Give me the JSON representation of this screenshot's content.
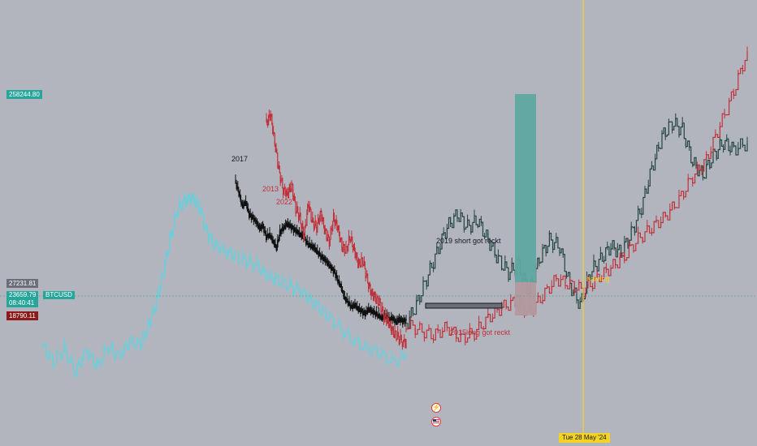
{
  "symbol": "BTCUSD",
  "price_scale": {
    "top_label": "258244.80",
    "level_label": "27231.81",
    "current_price": "23659.79",
    "countdown": "08:40:41",
    "low_label": "18790.11"
  },
  "date_axis": {
    "cursor_label": "Tue 28 May '24"
  },
  "colors": {
    "background": "#b2b5be",
    "cycle_2013": "#c0313a",
    "cycle_2017": "#111111",
    "cycle_2019": "#23443f",
    "cycle_2022": "#5fd3df",
    "halving_line": "#f5d323",
    "long_box": "#5fa8a0",
    "short_box": "#b19a9f"
  },
  "icons": {
    "event_flash": "lightning-icon",
    "event_country": "us-flag-icon"
  },
  "chart_data": {
    "type": "line",
    "y_scale": "log",
    "ylim": [
      18790.11,
      258244.8
    ],
    "annotations": [
      {
        "text": "2017"
      },
      {
        "text": "2013"
      },
      {
        "text": "2022"
      },
      {
        "text": "2019 short got reckt"
      },
      {
        "text": "2015long got reckt"
      },
      {
        "text": "halving"
      }
    ],
    "series": [
      {
        "name": "2022",
        "color": "#5fd3df",
        "x": [
          0,
          3,
          6,
          9,
          12,
          15,
          18,
          21,
          24,
          27,
          29,
          31,
          33,
          35,
          37,
          39,
          41,
          43,
          45,
          47,
          50,
          53,
          56,
          59,
          62,
          65,
          68,
          71,
          74,
          77,
          80,
          84,
          88,
          92,
          96,
          100
        ],
        "y": [
          4,
          -2,
          3,
          -6,
          2,
          -4,
          4,
          0,
          6,
          5,
          12,
          20,
          32,
          46,
          58,
          62,
          63,
          60,
          50,
          45,
          42,
          40,
          38,
          36,
          32,
          30,
          28,
          26,
          22,
          18,
          14,
          8,
          4,
          2,
          -2,
          0
        ]
      },
      {
        "name": "2017",
        "color": "#111111",
        "x": [
          0,
          2,
          4,
          6,
          8,
          10,
          12,
          14,
          16,
          18,
          20,
          22,
          24,
          26,
          28,
          30,
          32,
          34,
          36,
          38,
          40,
          42,
          44,
          46,
          48,
          50,
          52,
          54,
          56,
          58,
          60,
          62,
          64,
          66,
          68,
          70,
          72,
          74,
          76,
          78,
          80,
          82,
          84,
          86,
          88,
          90,
          92,
          94,
          96,
          98,
          100
        ],
        "y": [
          100,
          90,
          78,
          82,
          70,
          68,
          64,
          58,
          60,
          50,
          52,
          46,
          40,
          54,
          58,
          62,
          60,
          57,
          55,
          52,
          50,
          44,
          42,
          40,
          36,
          32,
          30,
          26,
          22,
          18,
          10,
          4,
          -6,
          -10,
          -14,
          -12,
          -16,
          -18,
          -20,
          -16,
          -18,
          -20,
          -22,
          -24,
          -22,
          -26,
          -24,
          -28,
          -25,
          -27,
          -26
        ]
      },
      {
        "name": "2013",
        "color": "#c0313a",
        "x": [
          0,
          3,
          6,
          9,
          12,
          15,
          18,
          21,
          24,
          27,
          30,
          33,
          36,
          39,
          42,
          45,
          48,
          51,
          54,
          57,
          60,
          63,
          66,
          69,
          72,
          75,
          78,
          81,
          84,
          87,
          90,
          93,
          96,
          100
        ],
        "y": [
          48,
          52,
          40,
          28,
          20,
          18,
          22,
          12,
          8,
          0,
          14,
          6,
          4,
          10,
          2,
          -2,
          8,
          4,
          -4,
          -6,
          0,
          -6,
          -12,
          -10,
          -18,
          -24,
          -26,
          -28,
          -34,
          -36,
          -40,
          -42,
          -44,
          -46
        ]
      },
      {
        "name": "2019",
        "color": "#23443f",
        "x": [
          0,
          3,
          6,
          9,
          12,
          15,
          18,
          21,
          24,
          27,
          30,
          33,
          36,
          39,
          42,
          45,
          48,
          51,
          54,
          57,
          60,
          63,
          66,
          69,
          72,
          75,
          78,
          81,
          84,
          87,
          90,
          93,
          96,
          100
        ],
        "y": [
          0,
          6,
          14,
          22,
          30,
          34,
          30,
          32,
          26,
          20,
          16,
          18,
          10,
          20,
          26,
          24,
          12,
          6,
          16,
          20,
          24,
          22,
          28,
          36,
          48,
          58,
          62,
          60,
          50,
          46,
          52,
          56,
          54,
          56
        ]
      },
      {
        "name": "2015",
        "color": "#c0313a",
        "x": [
          0,
          4,
          8,
          12,
          16,
          20,
          24,
          28,
          32,
          36,
          40,
          44,
          48,
          52,
          56,
          60,
          64,
          68,
          72,
          76,
          80,
          84,
          88,
          92,
          96,
          100
        ],
        "y": [
          0,
          -2,
          -4,
          -1,
          -5,
          -3,
          2,
          6,
          8,
          4,
          10,
          16,
          14,
          12,
          16,
          20,
          24,
          30,
          34,
          38,
          44,
          52,
          58,
          70,
          82,
          96
        ]
      }
    ]
  }
}
